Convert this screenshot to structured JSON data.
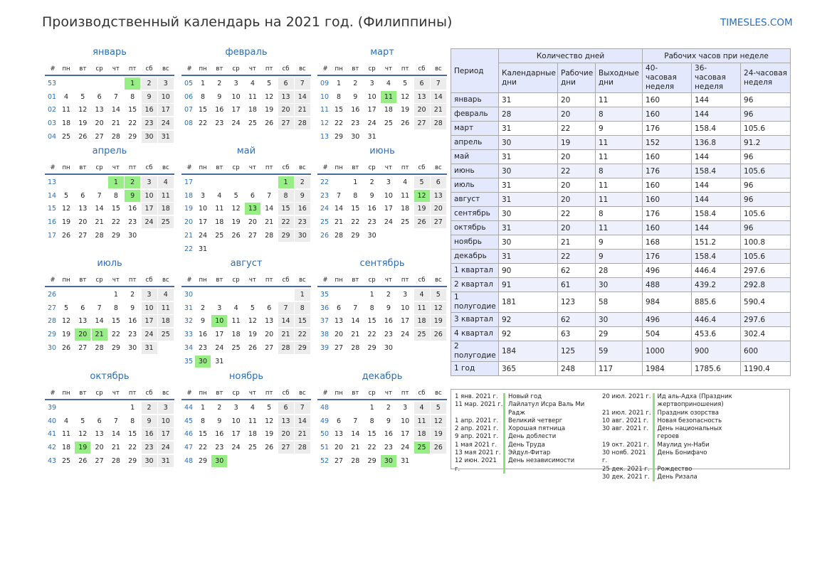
{
  "header": {
    "title": "Производственный календарь на 2021 год. (Филиппины)",
    "site": "TIMESLES.COM"
  },
  "weekday_header": [
    "#",
    "пн",
    "вт",
    "ср",
    "чт",
    "пт",
    "сб",
    "вс"
  ],
  "months": [
    {
      "name": "январь",
      "holidays": [
        1
      ],
      "weeks": [
        [
          "53",
          null,
          null,
          null,
          null,
          1,
          2,
          3
        ],
        [
          "01",
          4,
          5,
          6,
          7,
          8,
          9,
          10
        ],
        [
          "02",
          11,
          12,
          13,
          14,
          15,
          16,
          17
        ],
        [
          "03",
          18,
          19,
          20,
          21,
          22,
          23,
          24
        ],
        [
          "04",
          25,
          26,
          27,
          28,
          29,
          30,
          31
        ]
      ]
    },
    {
      "name": "февраль",
      "holidays": [],
      "weeks": [
        [
          "05",
          1,
          2,
          3,
          4,
          5,
          6,
          7
        ],
        [
          "06",
          8,
          9,
          10,
          11,
          12,
          13,
          14
        ],
        [
          "07",
          15,
          16,
          17,
          18,
          19,
          20,
          21
        ],
        [
          "08",
          22,
          23,
          24,
          25,
          26,
          27,
          28
        ]
      ]
    },
    {
      "name": "март",
      "holidays": [
        11
      ],
      "weeks": [
        [
          "09",
          1,
          2,
          3,
          4,
          5,
          6,
          7
        ],
        [
          "10",
          8,
          9,
          10,
          11,
          12,
          13,
          14
        ],
        [
          "11",
          15,
          16,
          17,
          18,
          19,
          20,
          21
        ],
        [
          "12",
          22,
          23,
          24,
          25,
          26,
          27,
          28
        ],
        [
          "13",
          29,
          30,
          31,
          null,
          null,
          null,
          null
        ]
      ]
    },
    {
      "name": "апрель",
      "holidays": [
        1,
        2,
        9
      ],
      "weeks": [
        [
          "13",
          null,
          null,
          null,
          1,
          2,
          3,
          4
        ],
        [
          "14",
          5,
          6,
          7,
          8,
          9,
          10,
          11
        ],
        [
          "15",
          12,
          13,
          14,
          15,
          16,
          17,
          18
        ],
        [
          "16",
          19,
          20,
          21,
          22,
          23,
          24,
          25
        ],
        [
          "17",
          26,
          27,
          28,
          29,
          30,
          null,
          null
        ]
      ]
    },
    {
      "name": "май",
      "holidays": [
        1,
        13
      ],
      "weeks": [
        [
          "17",
          null,
          null,
          null,
          null,
          null,
          1,
          2
        ],
        [
          "18",
          3,
          4,
          5,
          6,
          7,
          8,
          9
        ],
        [
          "19",
          10,
          11,
          12,
          13,
          14,
          15,
          16
        ],
        [
          "20",
          17,
          18,
          19,
          20,
          21,
          22,
          23
        ],
        [
          "21",
          24,
          25,
          26,
          27,
          28,
          29,
          30
        ],
        [
          "22",
          31,
          null,
          null,
          null,
          null,
          null,
          null
        ]
      ]
    },
    {
      "name": "июнь",
      "holidays": [
        12
      ],
      "weeks": [
        [
          "22",
          null,
          1,
          2,
          3,
          4,
          5,
          6
        ],
        [
          "23",
          7,
          8,
          9,
          10,
          11,
          12,
          13
        ],
        [
          "24",
          14,
          15,
          16,
          17,
          18,
          19,
          20
        ],
        [
          "25",
          21,
          22,
          23,
          24,
          25,
          26,
          27
        ],
        [
          "26",
          28,
          29,
          30,
          null,
          null,
          null,
          null
        ]
      ]
    },
    {
      "name": "июль",
      "holidays": [
        20,
        21
      ],
      "weeks": [
        [
          "26",
          null,
          null,
          null,
          1,
          2,
          3,
          4
        ],
        [
          "27",
          5,
          6,
          7,
          8,
          9,
          10,
          11
        ],
        [
          "28",
          12,
          13,
          14,
          15,
          16,
          17,
          18
        ],
        [
          "29",
          19,
          20,
          21,
          22,
          23,
          24,
          25
        ],
        [
          "30",
          26,
          27,
          28,
          29,
          30,
          31,
          null
        ]
      ]
    },
    {
      "name": "август",
      "holidays": [
        10,
        30
      ],
      "weeks": [
        [
          "30",
          null,
          null,
          null,
          null,
          null,
          null,
          1
        ],
        [
          "31",
          2,
          3,
          4,
          5,
          6,
          7,
          8
        ],
        [
          "32",
          9,
          10,
          11,
          12,
          13,
          14,
          15
        ],
        [
          "33",
          16,
          17,
          18,
          19,
          20,
          21,
          22
        ],
        [
          "34",
          23,
          24,
          25,
          26,
          27,
          28,
          29
        ],
        [
          "35",
          30,
          31,
          null,
          null,
          null,
          null,
          null
        ]
      ]
    },
    {
      "name": "сентябрь",
      "holidays": [],
      "weeks": [
        [
          "35",
          null,
          null,
          1,
          2,
          3,
          4,
          5
        ],
        [
          "36",
          6,
          7,
          8,
          9,
          10,
          11,
          12
        ],
        [
          "37",
          13,
          14,
          15,
          16,
          17,
          18,
          19
        ],
        [
          "38",
          20,
          21,
          22,
          23,
          24,
          25,
          26
        ],
        [
          "39",
          27,
          28,
          29,
          30,
          null,
          null,
          null
        ]
      ]
    },
    {
      "name": "октябрь",
      "holidays": [
        19
      ],
      "weeks": [
        [
          "39",
          null,
          null,
          null,
          null,
          1,
          2,
          3
        ],
        [
          "40",
          4,
          5,
          6,
          7,
          8,
          9,
          10
        ],
        [
          "41",
          11,
          12,
          13,
          14,
          15,
          16,
          17
        ],
        [
          "42",
          18,
          19,
          20,
          21,
          22,
          23,
          24
        ],
        [
          "43",
          25,
          26,
          27,
          28,
          29,
          30,
          31
        ]
      ]
    },
    {
      "name": "ноябрь",
      "holidays": [
        30
      ],
      "weeks": [
        [
          "44",
          1,
          2,
          3,
          4,
          5,
          6,
          7
        ],
        [
          "45",
          8,
          9,
          10,
          11,
          12,
          13,
          14
        ],
        [
          "46",
          15,
          16,
          17,
          18,
          19,
          20,
          21
        ],
        [
          "47",
          22,
          23,
          24,
          25,
          26,
          27,
          28
        ],
        [
          "48",
          29,
          30,
          null,
          null,
          null,
          null,
          null
        ]
      ]
    },
    {
      "name": "декабрь",
      "holidays": [
        25,
        30
      ],
      "weeks": [
        [
          "48",
          null,
          null,
          1,
          2,
          3,
          4,
          5
        ],
        [
          "49",
          6,
          7,
          8,
          9,
          10,
          11,
          12
        ],
        [
          "50",
          13,
          14,
          15,
          16,
          17,
          18,
          19
        ],
        [
          "51",
          20,
          21,
          22,
          23,
          24,
          25,
          26
        ],
        [
          "52",
          27,
          28,
          29,
          30,
          31,
          null,
          null
        ]
      ]
    }
  ],
  "table": {
    "period": "Период",
    "group_days": "Количество дней",
    "group_hours": "Рабочих часов при неделе",
    "columns": [
      "Календарные дни",
      "Рабочие дни",
      "Выходные дни",
      "40-часовая неделя",
      "36-часовая неделя",
      "24-часовая неделя"
    ],
    "rows": [
      [
        "январь",
        31,
        20,
        11,
        160,
        144,
        96
      ],
      [
        "февраль",
        28,
        20,
        8,
        160,
        144,
        96
      ],
      [
        "март",
        31,
        22,
        9,
        176,
        158.4,
        105.6
      ],
      [
        "апрель",
        30,
        19,
        11,
        152,
        136.8,
        91.2
      ],
      [
        "май",
        31,
        20,
        11,
        160,
        144,
        96
      ],
      [
        "июнь",
        30,
        22,
        8,
        176,
        158.4,
        105.6
      ],
      [
        "июль",
        31,
        20,
        11,
        160,
        144,
        96
      ],
      [
        "август",
        31,
        20,
        11,
        160,
        144,
        96
      ],
      [
        "сентябрь",
        30,
        22,
        8,
        176,
        158.4,
        105.6
      ],
      [
        "октябрь",
        31,
        20,
        11,
        160,
        144,
        96
      ],
      [
        "ноябрь",
        30,
        21,
        9,
        168,
        151.2,
        100.8
      ],
      [
        "декабрь",
        31,
        22,
        9,
        176,
        158.4,
        105.6
      ],
      [
        "1 квартал",
        90,
        62,
        28,
        496,
        446.4,
        297.6
      ],
      [
        "2 квартал",
        91,
        61,
        30,
        488,
        439.2,
        292.8
      ],
      [
        "1 полугодие",
        181,
        123,
        58,
        984,
        885.6,
        590.4
      ],
      [
        "3 квартал",
        92,
        62,
        30,
        496,
        446.4,
        297.6
      ],
      [
        "4 квартал",
        92,
        63,
        29,
        504,
        453.6,
        302.4
      ],
      [
        "2 полугодие",
        184,
        125,
        59,
        1000,
        900,
        600
      ],
      [
        "1 год",
        365,
        248,
        117,
        1984,
        1785.6,
        1190.4
      ]
    ]
  },
  "holiday_list": [
    [
      {
        "date": "1 янв. 2021 г.",
        "name": "Новый год"
      },
      {
        "date": "11 мар. 2021 г.",
        "name": "Лайлатул Исра Валь Ми Радж"
      },
      {
        "date": "1 апр. 2021 г.",
        "name": "Великий четверг"
      },
      {
        "date": "2 апр. 2021 г.",
        "name": "Хорошая пятница"
      },
      {
        "date": "9 апр. 2021 г.",
        "name": "День доблести"
      },
      {
        "date": "1 мая 2021 г.",
        "name": "День Труда"
      },
      {
        "date": "13 мая 2021 г.",
        "name": "Эйдул-Фитар"
      },
      {
        "date": "12 июн. 2021 г.",
        "name": "День независимости"
      }
    ],
    [
      {
        "date": "20 июл. 2021 г.",
        "name": "Ид аль-Адха (Праздник жертвоприношения)"
      },
      {
        "date": "21 июл. 2021 г.",
        "name": "Праздник озорства"
      },
      {
        "date": "10 авг. 2021 г.",
        "name": "Новая безопасность"
      },
      {
        "date": "30 авг. 2021 г.",
        "name": "День национальных героев"
      },
      {
        "date": "19 окт. 2021 г.",
        "name": "Маулид ун-Наби"
      },
      {
        "date": "30 нояб. 2021 г.",
        "name": "День Бонифачо"
      },
      {
        "date": "25 дек. 2021 г.",
        "name": "Рождество"
      },
      {
        "date": "30 дек. 2021 г.",
        "name": "День Ризала"
      }
    ]
  ]
}
